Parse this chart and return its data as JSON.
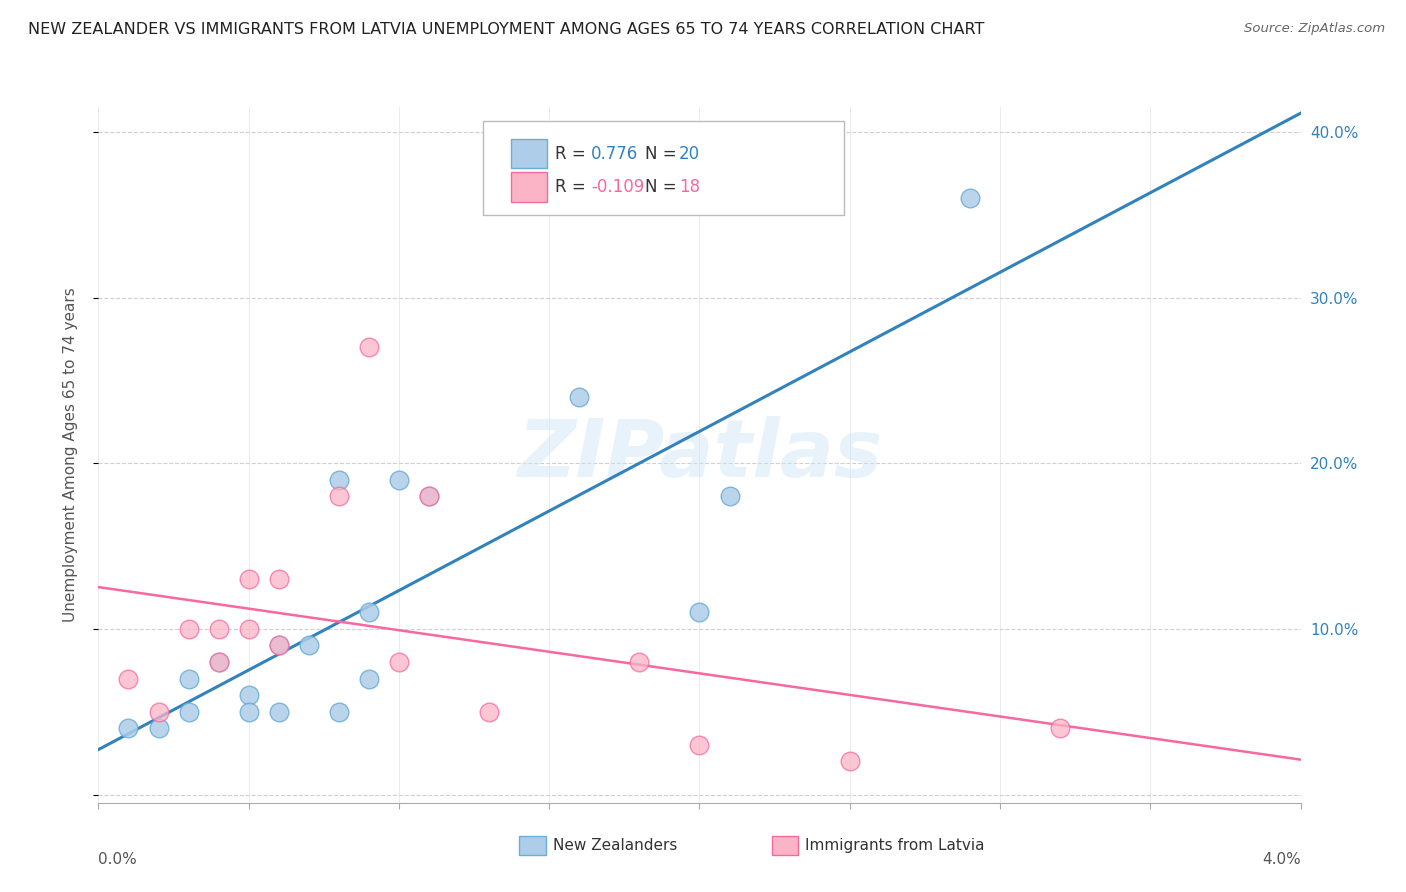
{
  "title": "NEW ZEALANDER VS IMMIGRANTS FROM LATVIA UNEMPLOYMENT AMONG AGES 65 TO 74 YEARS CORRELATION CHART",
  "source": "Source: ZipAtlas.com",
  "ylabel": "Unemployment Among Ages 65 to 74 years",
  "watermark": "ZIPatlas",
  "legend_nz_R": "0.776",
  "legend_nz_N": "20",
  "legend_imm_R": "-0.109",
  "legend_imm_N": "18",
  "nz_color_face": "#aecde8",
  "nz_color_edge": "#6baed6",
  "imm_color_face": "#fbb4c6",
  "imm_color_edge": "#f768a1",
  "nz_line_color": "#3182bd",
  "imm_line_color": "#f768a1",
  "xmin": 0.0,
  "xmax": 0.04,
  "ymin": -0.005,
  "ymax": 0.415,
  "yticks": [
    0.0,
    0.1,
    0.2,
    0.3,
    0.4
  ],
  "ytick_labels_left": [
    "",
    "",
    "",
    "",
    ""
  ],
  "ytick_labels_right": [
    "",
    "10.0%",
    "20.0%",
    "30.0%",
    "40.0%"
  ],
  "xtick_positions": [
    0.0,
    0.005,
    0.01,
    0.015,
    0.02,
    0.025,
    0.03,
    0.035,
    0.04
  ],
  "nz_x": [
    0.001,
    0.002,
    0.003,
    0.003,
    0.004,
    0.005,
    0.005,
    0.006,
    0.006,
    0.007,
    0.008,
    0.008,
    0.009,
    0.009,
    0.01,
    0.011,
    0.016,
    0.02,
    0.021,
    0.029
  ],
  "nz_y": [
    0.04,
    0.04,
    0.07,
    0.05,
    0.08,
    0.06,
    0.05,
    0.09,
    0.05,
    0.09,
    0.19,
    0.05,
    0.07,
    0.11,
    0.19,
    0.18,
    0.24,
    0.11,
    0.18,
    0.36
  ],
  "imm_x": [
    0.001,
    0.002,
    0.003,
    0.004,
    0.004,
    0.005,
    0.005,
    0.006,
    0.006,
    0.008,
    0.009,
    0.01,
    0.011,
    0.013,
    0.018,
    0.02,
    0.025,
    0.032
  ],
  "imm_y": [
    0.07,
    0.05,
    0.1,
    0.1,
    0.08,
    0.1,
    0.13,
    0.13,
    0.09,
    0.18,
    0.27,
    0.08,
    0.18,
    0.05,
    0.08,
    0.03,
    0.02,
    0.04
  ],
  "background_color": "#ffffff",
  "grid_color": "#d0d0d0",
  "nz_marker_size": 180,
  "imm_marker_size": 180
}
